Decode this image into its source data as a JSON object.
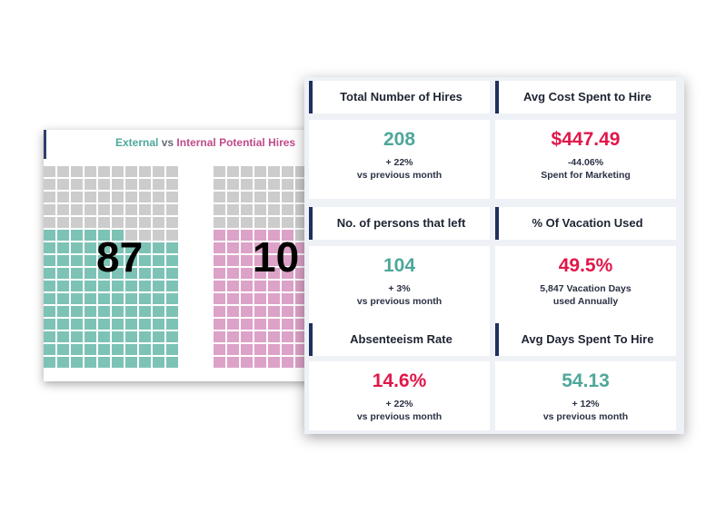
{
  "waffle": {
    "title_part1": "External",
    "title_part2": "vs",
    "title_part3": "Internal Potential Hires",
    "external_value": "87",
    "internal_value": "10"
  },
  "chart_data": {
    "type": "waffle",
    "title": "External vs Internal Potential Hires",
    "series": [
      {
        "name": "External",
        "value": 87,
        "color": "#7cc3b6"
      },
      {
        "name": "Internal",
        "value": 10,
        "color": "#dda2c8"
      }
    ],
    "empty_color": "#cccccc"
  },
  "kpis": [
    {
      "title": "Total Number of Hires",
      "value": "208",
      "sub1": "+ 22%",
      "sub2": "vs previous month",
      "color": "teal"
    },
    {
      "title": "Avg Cost Spent to Hire",
      "value": "$447.49",
      "sub1": "-44.06%",
      "sub2": "Spent for Marketing",
      "color": "red"
    },
    {
      "title": "No. of persons that left",
      "value": "104",
      "sub1": "+ 3%",
      "sub2": "vs previous month",
      "color": "teal"
    },
    {
      "title": "% Of Vacation Used",
      "value": "49.5%",
      "sub1": "5,847 Vacation Days",
      "sub2": "used Annually",
      "color": "red"
    },
    {
      "title": "Absenteeism Rate",
      "value": "14.6%",
      "sub1": "+ 22%",
      "sub2": "vs previous month",
      "color": "red"
    },
    {
      "title": "Avg Days Spent To Hire",
      "value": "54.13",
      "sub1": "+ 12%",
      "sub2": "vs previous month",
      "color": "teal"
    }
  ],
  "colors": {
    "teal": "#4ea79a",
    "red": "#e0184a",
    "header_accent": "#1f2f5e"
  }
}
